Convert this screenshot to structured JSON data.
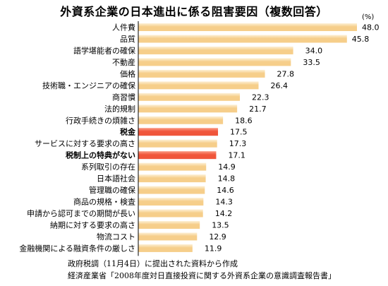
{
  "title": "外資系企業の日本進出に係る阻害要因（複数回答）",
  "unit": "(%)",
  "chart_data": {
    "type": "bar",
    "orientation": "horizontal",
    "categories": [
      "人件費",
      "品質",
      "語学堪能者の確保",
      "不動産",
      "価格",
      "技術職・エンジニアの確保",
      "商習慣",
      "法的規制",
      "行政手続きの煩雑さ",
      "税金",
      "サービスに対する要求の高さ",
      "税制上の特典がない",
      "系列取引の存在",
      "日本語社会",
      "管理職の確保",
      "商品の規格・検査",
      "申請から認可までの期間が長い",
      "納期に対する要求の高さ",
      "物流コスト",
      "金融機関による融資条件の厳しさ"
    ],
    "values": [
      48.0,
      45.8,
      34.0,
      33.5,
      27.8,
      26.4,
      22.3,
      21.7,
      18.6,
      17.5,
      17.3,
      17.1,
      14.9,
      14.8,
      14.6,
      14.3,
      14.2,
      13.5,
      12.9,
      11.9
    ],
    "value_labels": [
      "48.0",
      "45.8",
      "34.0",
      "33.5",
      "27.8",
      "26.4",
      "22.3",
      "21.7",
      "18.6",
      "17.5",
      "17.3",
      "17.1",
      "14.9",
      "14.8",
      "14.6",
      "14.3",
      "14.2",
      "13.5",
      "12.9",
      "11.9"
    ],
    "highlighted": [
      "税金",
      "税制上の特典がない"
    ],
    "colors": {
      "normal": "#f6ce8a",
      "normal_light": "#fdf0d6",
      "highlight": "#f0553a",
      "highlight_light": "#fb9a84",
      "axis": "#000000"
    },
    "xlim": [
      0,
      48.0
    ],
    "grid": false,
    "title": "外資系企業の日本進出に係る阻害要因（複数回答）",
    "unit": "(%)"
  },
  "notes": [
    "政府税調（11月4日）に提出された資料から作成",
    "経済産業省「2008年度対日直接投資に関する外資系企業の意識調査報告書」"
  ]
}
